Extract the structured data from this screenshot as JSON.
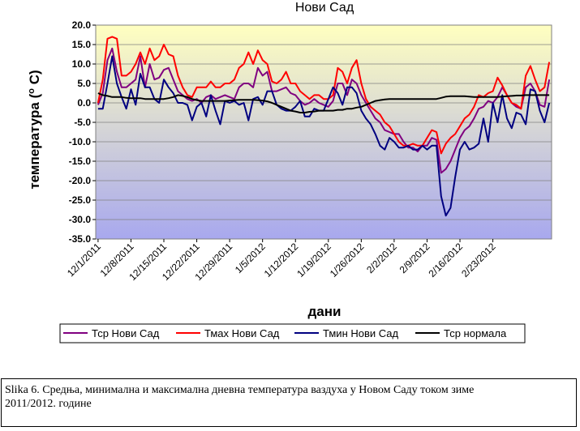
{
  "chart_data": {
    "type": "line",
    "title": "Нови Сад",
    "ylabel": "температура (°C)",
    "ylabel_parts": {
      "before": "температура (",
      "degree": "o",
      "after": " C)"
    },
    "xlabel": "дани",
    "ylim": [
      -35,
      20
    ],
    "yticks": [
      "20.0",
      "15.0",
      "10.0",
      "5.0",
      "0.0",
      "-5.0",
      "-10.0",
      "-15.0",
      "-20.0",
      "-25.0",
      "-30.0",
      "-35.0"
    ],
    "xticks": [
      "12/1/2011",
      "12/8/2011",
      "12/15/2011",
      "12/22/2011",
      "12/29/2011",
      "1/5/2012",
      "1/12/2012",
      "1/19/2012",
      "1/26/2012",
      "2/2/2012",
      "2/9/2012",
      "2/16/2012",
      "2/23/2012"
    ],
    "legend_position": "bottom",
    "background": {
      "top": "#ffffc0",
      "bottom": "#a8a8ee"
    },
    "series": [
      {
        "name": "Тср Нови Сад",
        "color": "#800080",
        "values": [
          -0.5,
          2.5,
          11,
          14,
          8,
          4,
          4,
          5,
          6,
          12,
          4,
          10,
          6,
          6.5,
          8.5,
          9,
          6,
          3,
          2,
          1,
          0.5,
          1,
          0,
          1.5,
          2,
          1,
          1.5,
          2,
          1.5,
          1,
          4,
          5,
          5,
          4,
          9,
          7,
          8,
          3,
          3,
          3.5,
          4,
          2.5,
          2,
          0.5,
          -0.5,
          0,
          1,
          0,
          -0.5,
          -1,
          0.5,
          5,
          5,
          2,
          6,
          5,
          2,
          0,
          -2,
          -4,
          -5,
          -7,
          -7.5,
          -8,
          -8,
          -10,
          -11.5,
          -11.5,
          -12.5,
          -11,
          -11,
          -9,
          -9.5,
          -18,
          -17,
          -15,
          -12,
          -9,
          -7,
          -6,
          -4,
          -1.5,
          -1,
          0.5,
          0,
          1.5,
          4,
          2,
          0,
          -1,
          -1.5,
          4,
          5,
          3,
          -0.5,
          -1,
          6
        ]
      },
      {
        "name": "Тмах Нови Сад",
        "color": "#ff0000",
        "values": [
          0,
          6,
          16.5,
          17,
          16.5,
          7,
          7,
          8,
          10,
          13,
          10,
          14,
          11,
          12,
          15,
          12.5,
          12,
          7,
          4,
          2,
          1.5,
          4,
          4,
          4,
          5.5,
          4,
          4,
          5,
          5,
          6,
          9,
          10,
          13,
          10,
          13.5,
          11,
          10,
          5.5,
          5,
          6,
          8,
          5,
          5,
          3,
          2,
          1,
          2,
          2,
          1,
          1,
          2,
          9,
          8,
          5,
          9,
          11,
          5,
          1,
          -1,
          -2,
          -3,
          -5,
          -6,
          -8,
          -10,
          -11,
          -11,
          -10.5,
          -11,
          -11,
          -9,
          -7,
          -7.5,
          -13,
          -10.5,
          -9,
          -8,
          -6,
          -4,
          -3,
          -1,
          2,
          1.5,
          2.5,
          3,
          6.5,
          4.5,
          2,
          0,
          -0.5,
          -1.5,
          7,
          9.5,
          6,
          3,
          4,
          10.5
        ]
      },
      {
        "name": "Тмин Нови Сад",
        "color": "#000080",
        "values": [
          -1.5,
          -1.5,
          5,
          12,
          5,
          1.5,
          -1.5,
          3.5,
          -0.5,
          7.5,
          4,
          4,
          1,
          0,
          6,
          4,
          2.5,
          0,
          0,
          -0.5,
          -4.5,
          -1,
          0,
          -3.5,
          2,
          -2,
          -5.5,
          0.5,
          0,
          0.5,
          -0.5,
          0,
          -4.5,
          1,
          1.5,
          -0.5,
          3,
          3,
          -0.5,
          -1.5,
          -2,
          -2,
          -1,
          0.5,
          -3.5,
          -3.5,
          -1.5,
          -2,
          -2,
          1,
          4,
          2.5,
          -0.5,
          4,
          4,
          2.5,
          -2,
          -4,
          -5.5,
          -8,
          -11,
          -12,
          -9,
          -10,
          -11.5,
          -11.5,
          -11,
          -12,
          -12,
          -11,
          -12,
          -11,
          -11,
          -24,
          -29,
          -27,
          -19,
          -12,
          -10,
          -12,
          -11.5,
          -10.5,
          -4,
          -10,
          0,
          -5,
          2,
          -4,
          -6.5,
          -2.5,
          -3,
          -5.5,
          3.5,
          3,
          -2,
          -5,
          0
        ]
      },
      {
        "name": "Тср нормала",
        "color": "#000000",
        "values": [
          2.5,
          2,
          1.8,
          1.5,
          1.5,
          1.5,
          1.3,
          1.2,
          1.2,
          1.2,
          1,
          1,
          1,
          1,
          1,
          1.2,
          1.5,
          2,
          1.8,
          1.5,
          1,
          0.7,
          0.5,
          0.5,
          0.5,
          0.5,
          0.5,
          0.5,
          0.6,
          0.7,
          0.8,
          0.8,
          0.8,
          0.8,
          0.7,
          0.6,
          0.4,
          0,
          -0.5,
          -1,
          -1.5,
          -2,
          -2.2,
          -2.5,
          -2.5,
          -2.3,
          -2.2,
          -2,
          -2,
          -2,
          -2,
          -1.8,
          -1.8,
          -1.5,
          -1.5,
          -1.2,
          -1,
          -0.5,
          0,
          0.5,
          0.7,
          0.9,
          1,
          1,
          1,
          1,
          1,
          1,
          1,
          1,
          1,
          1,
          1,
          1.3,
          1.6,
          1.7,
          1.7,
          1.7,
          1.7,
          1.6,
          1.5,
          1.5,
          1.5,
          1.5,
          1.5,
          1.5,
          1.6,
          1.7,
          1.8,
          1.9,
          1.9,
          2,
          2,
          2,
          2,
          2,
          2
        ]
      }
    ]
  },
  "caption": {
    "line1": "Slika 6. Средња, минимална и максимална дневна температура ваздуха у Новом Саду током зиме",
    "line2": "2011/2012. године"
  }
}
